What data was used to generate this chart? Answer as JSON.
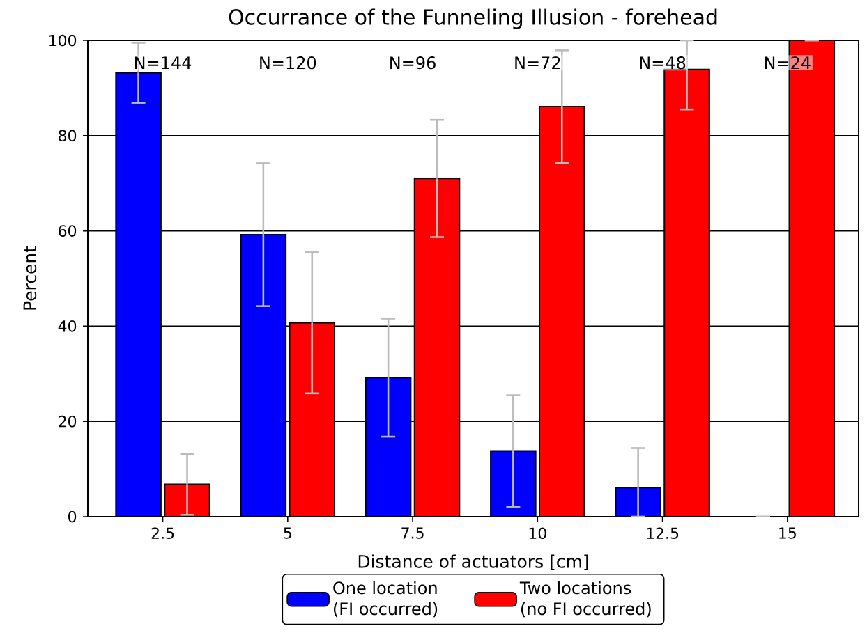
{
  "chart_data": {
    "type": "bar",
    "title": "Occurrance of the Funneling Illusion - forehead",
    "xlabel": "Distance of actuators [cm]",
    "ylabel": "Percent",
    "categories": [
      "2.5",
      "5",
      "7.5",
      "10",
      "12.5",
      "15"
    ],
    "series": [
      {
        "name": "One location (FI occurred)",
        "color": "#0000ff",
        "values": [
          93.2,
          59.2,
          29.2,
          13.8,
          6.1,
          0
        ],
        "errors": [
          6.3,
          15,
          12.4,
          11.7,
          [
            0,
            14.4
          ],
          0
        ]
      },
      {
        "name": "Two locations (no FI occurred)",
        "color": "#ff0000",
        "values": [
          6.8,
          40.7,
          71,
          86.1,
          93.9,
          100
        ],
        "errors": [
          6.4,
          14.8,
          12.3,
          11.8,
          [
            85.5,
            100
          ],
          0
        ]
      }
    ],
    "ylim": [
      0,
      100
    ],
    "yticks": [
      0,
      20,
      40,
      60,
      80,
      100
    ],
    "grid": "y",
    "legend": "bottom",
    "annotations": [
      "N=144",
      "N=120",
      "N=96",
      "N=72",
      "N=48",
      "N=24"
    ]
  }
}
